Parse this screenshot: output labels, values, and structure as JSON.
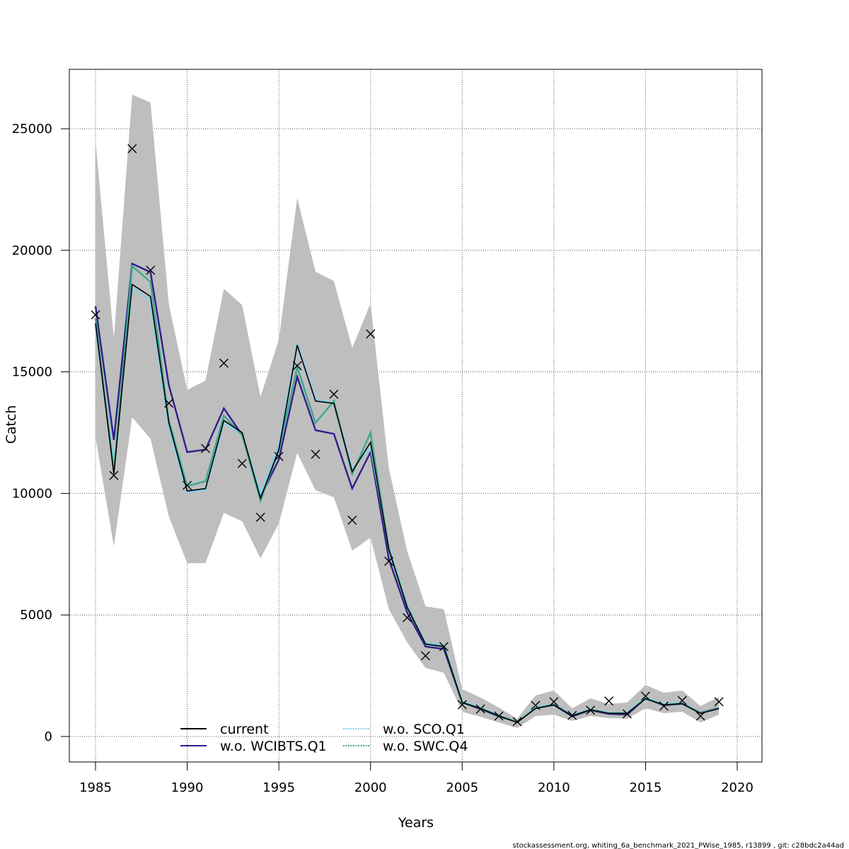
{
  "chart_data": {
    "type": "line",
    "title": "",
    "xlabel": "Years",
    "ylabel": "Catch",
    "xlim": [
      1983.6,
      2021.3
    ],
    "ylim": [
      -1050,
      27500
    ],
    "xticks": [
      1985,
      1990,
      1995,
      2000,
      2005,
      2010,
      2015,
      2020
    ],
    "xtick_labels": [
      "1985",
      "1990",
      "1995",
      "2000",
      "2005",
      "2010",
      "2015",
      "2020"
    ],
    "yticks": [
      0,
      5000,
      10000,
      15000,
      20000,
      25000
    ],
    "ytick_labels": [
      "0",
      "5000",
      "10000",
      "15000",
      "20000",
      "25000"
    ],
    "grid": true,
    "legend_position": "bottom-left",
    "x": [
      1985,
      1986,
      1987,
      1988,
      1989,
      1990,
      1991,
      1992,
      1993,
      1994,
      1995,
      1996,
      1997,
      1998,
      1999,
      2000,
      2001,
      2002,
      2003,
      2004,
      2005,
      2006,
      2007,
      2008,
      2009,
      2010,
      2011,
      2012,
      2013,
      2014,
      2015,
      2016,
      2017,
      2018,
      2019
    ],
    "confidence_band": {
      "color": "#bebebe",
      "upper": [
        24470,
        16380,
        26400,
        26080,
        17780,
        14260,
        14640,
        18420,
        17750,
        13970,
        16330,
        22150,
        19120,
        18740,
        15980,
        17810,
        11030,
        7620,
        5350,
        5240,
        1950,
        1600,
        1190,
        730,
        1690,
        1890,
        1160,
        1570,
        1340,
        1400,
        2120,
        1800,
        1890,
        1250,
        1630
      ],
      "lower": [
        12310,
        7830,
        13130,
        12250,
        9050,
        7130,
        7130,
        9200,
        8850,
        7330,
        8760,
        11670,
        10130,
        9840,
        7650,
        8180,
        5240,
        3870,
        2820,
        2620,
        1020,
        810,
        580,
        350,
        840,
        900,
        640,
        840,
        760,
        730,
        1160,
        960,
        1020,
        580,
        900
      ]
    },
    "observed": {
      "marker": "x",
      "color": "#000000",
      "values": [
        17345,
        10740,
        24180,
        19180,
        13710,
        10330,
        11850,
        15360,
        11230,
        9020,
        11520,
        15250,
        11610,
        14080,
        8900,
        16560,
        7210,
        4890,
        3320,
        3700,
        1310,
        1130,
        840,
        610,
        1280,
        1430,
        870,
        1080,
        1460,
        930,
        1660,
        1250,
        1480,
        840,
        1430
      ]
    },
    "series": [
      {
        "name": "current",
        "color": "#000000",
        "style": "solid",
        "values": [
          17000,
          10800,
          18600,
          18100,
          12900,
          10100,
          10200,
          13000,
          12500,
          9800,
          11800,
          16100,
          13800,
          13700,
          10900,
          12100,
          7700,
          5300,
          3800,
          3700,
          1400,
          1150,
          850,
          580,
          1150,
          1300,
          850,
          1100,
          950,
          950,
          1550,
          1300,
          1350,
          950,
          1150
        ]
      },
      {
        "name": "w.o. WCIBTS.Q1",
        "color": "#2e1e8c",
        "style": "solid",
        "values": [
          17700,
          12200,
          19450,
          19100,
          14450,
          11700,
          11800,
          13500,
          12400,
          9850,
          11400,
          14800,
          12600,
          12450,
          10200,
          11700,
          7300,
          5100,
          3700,
          3600,
          1400,
          1130,
          830,
          600,
          1180,
          1300,
          830,
          1080,
          930,
          900,
          1580,
          1280,
          1350,
          980,
          1180
        ]
      },
      {
        "name": "w.o. SCO.Q1",
        "color": "#87ceeb",
        "style": "dotted",
        "values": [
          16900,
          11200,
          18500,
          17900,
          12700,
          10050,
          10150,
          12900,
          12400,
          10000,
          12000,
          16200,
          13900,
          13700,
          11000,
          11900,
          7800,
          5400,
          3850,
          3750,
          1450,
          1180,
          870,
          600,
          1200,
          1340,
          880,
          1120,
          980,
          980,
          1620,
          1330,
          1390,
          970,
          1170
        ]
      },
      {
        "name": "w.o. SWC.Q4",
        "color": "#3ca88c",
        "style": "dashed",
        "values": [
          17200,
          10900,
          19350,
          18700,
          13000,
          10300,
          10500,
          13200,
          12400,
          9700,
          11800,
          15200,
          12900,
          13800,
          10800,
          12500,
          7700,
          5350,
          3800,
          3700,
          1400,
          1160,
          850,
          590,
          1170,
          1320,
          860,
          1100,
          960,
          960,
          1570,
          1300,
          1360,
          960,
          1160
        ]
      }
    ],
    "legend_entries": [
      "current",
      "w.o. WCIBTS.Q1",
      "w.o. SCO.Q1",
      "w.o. SWC.Q4"
    ]
  },
  "footer": "stockassessment.org, whiting_6a_benchmark_2021_PWise_1985, r13899 , git: c28bdc2a44ad"
}
